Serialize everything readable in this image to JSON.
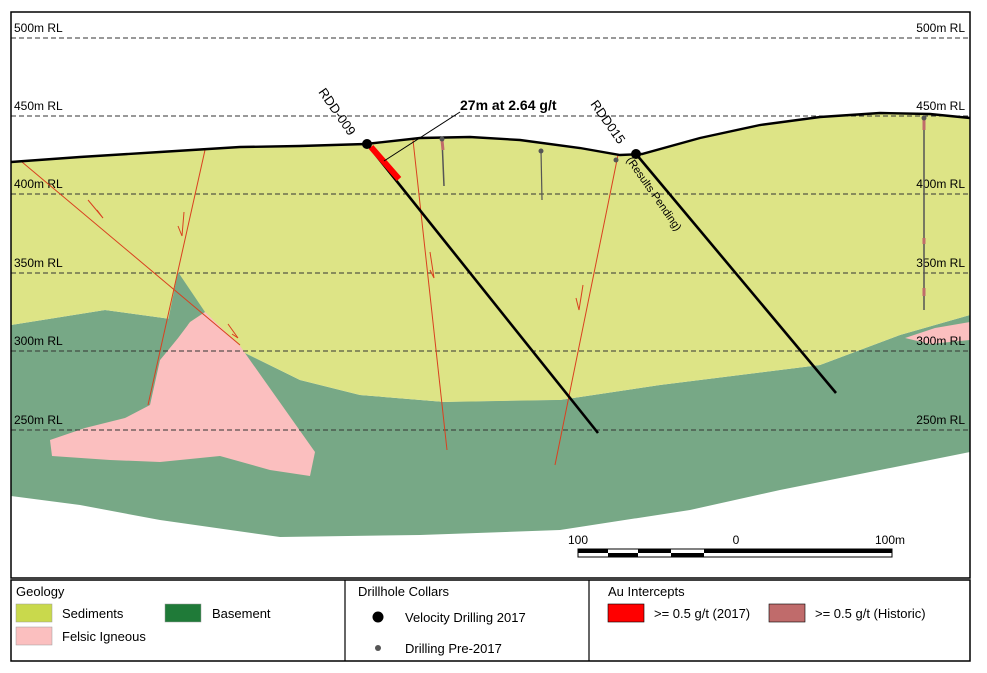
{
  "colors": {
    "sediments": "#dde486",
    "basement": "#77a886",
    "felsic": "#fbbfbf",
    "fault": "#d9401f",
    "intercept_2017": "#ff0000",
    "intercept_historic": "#c06b6b",
    "legend_sediments": "#c9d94c",
    "legend_basement": "#1f7a38"
  },
  "elevation_labels": [
    "500m RL",
    "450m RL",
    "400m RL",
    "350m RL",
    "300m RL",
    "250m RL"
  ],
  "drillholes": {
    "rdd009": "RDD-009",
    "rdd015": "RDD015",
    "rdd015_note": "(Results Pending)"
  },
  "intercept_callout": "27m at 2.64 g/t",
  "scale_bar": {
    "left": "100",
    "mid": "0",
    "right": "100m"
  },
  "legend": {
    "geology": {
      "title": "Geology",
      "sediments": "Sediments",
      "basement": "Basement",
      "felsic": "Felsic Igneous"
    },
    "collars": {
      "title": "Drillhole Collars",
      "velocity": "Velocity Drilling 2017",
      "pre2017": "Drilling Pre-2017"
    },
    "intercepts": {
      "title": "Au Intercepts",
      "i2017": ">= 0.5 g/t (2017)",
      "historic": ">= 0.5 g/t (Historic)"
    }
  }
}
